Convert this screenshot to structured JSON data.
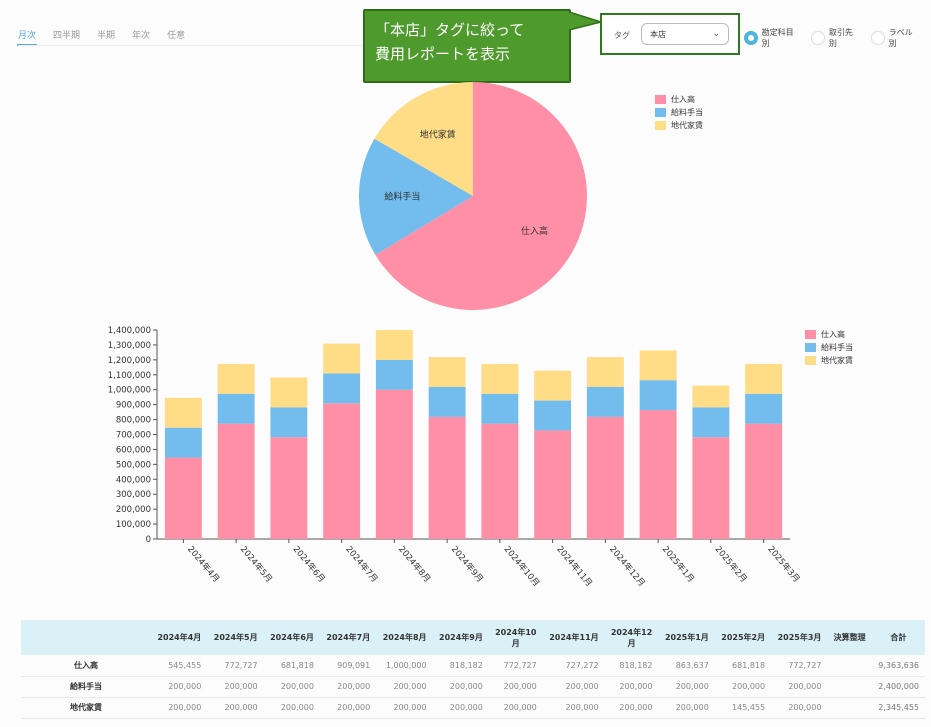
{
  "tabs": [
    {
      "label": "月次",
      "active": true
    },
    {
      "label": "四半期",
      "active": false
    },
    {
      "label": "半期",
      "active": false
    },
    {
      "label": "年次",
      "active": false
    },
    {
      "label": "任意",
      "active": false
    }
  ],
  "callout": {
    "line1": "「本店」タグに絞って",
    "line2": "費用レポートを表示"
  },
  "tag_filter": {
    "label": "タグ",
    "value": "本店"
  },
  "group_by": [
    {
      "label": "勘定科目別",
      "selected": true
    },
    {
      "label": "取引先別",
      "selected": false
    },
    {
      "label": "ラベル別",
      "selected": false
    }
  ],
  "colors": {
    "purchase": "#ff8fa6",
    "salary": "#72bcee",
    "rent": "#ffdc86"
  },
  "legend": [
    "仕入高",
    "給料手当",
    "地代家賃"
  ],
  "chart_data": [
    {
      "type": "pie",
      "labels": [
        "仕入高",
        "給料手当",
        "地代家賃"
      ],
      "values": [
        9363636,
        2400000,
        2345455
      ]
    },
    {
      "type": "bar",
      "stacked": true,
      "categories": [
        "2024年4月",
        "2024年5月",
        "2024年6月",
        "2024年7月",
        "2024年8月",
        "2024年9月",
        "2024年10月",
        "2024年11月",
        "2024年12月",
        "2025年1月",
        "2025年2月",
        "2025年3月"
      ],
      "series": [
        {
          "name": "仕入高",
          "values": [
            545455,
            772727,
            681818,
            909091,
            1000000,
            818182,
            772727,
            727272,
            818182,
            863637,
            681818,
            772727
          ]
        },
        {
          "name": "給料手当",
          "values": [
            200000,
            200000,
            200000,
            200000,
            200000,
            200000,
            200000,
            200000,
            200000,
            200000,
            200000,
            200000
          ]
        },
        {
          "name": "地代家賃",
          "values": [
            200000,
            200000,
            200000,
            200000,
            200000,
            200000,
            200000,
            200000,
            200000,
            200000,
            145455,
            200000
          ]
        }
      ],
      "ylim": [
        0,
        1400000
      ],
      "yticks": [
        "0",
        "100,000",
        "200,000",
        "300,000",
        "400,000",
        "500,000",
        "600,000",
        "700,000",
        "800,000",
        "900,000",
        "1,000,000",
        "1,100,000",
        "1,200,000",
        "1,300,000",
        "1,400,000"
      ]
    }
  ],
  "table": {
    "headers": [
      "",
      "2024年4月",
      "2024年5月",
      "2024年6月",
      "2024年7月",
      "2024年8月",
      "2024年9月",
      "2024年10\n月",
      "2024年11月",
      "2024年12\n月",
      "2025年1月",
      "2025年2月",
      "2025年3月",
      "決算整理",
      "合計"
    ],
    "rows": [
      [
        "仕入高",
        "545,455",
        "772,727",
        "681,818",
        "909,091",
        "1,000,000",
        "818,182",
        "772,727",
        "727,272",
        "818,182",
        "863,637",
        "681,818",
        "772,727",
        "",
        "9,363,636"
      ],
      [
        "給料手当",
        "200,000",
        "200,000",
        "200,000",
        "200,000",
        "200,000",
        "200,000",
        "200,000",
        "200,000",
        "200,000",
        "200,000",
        "200,000",
        "200,000",
        "",
        "2,400,000"
      ],
      [
        "地代家賃",
        "200,000",
        "200,000",
        "200,000",
        "200,000",
        "200,000",
        "200,000",
        "200,000",
        "200,000",
        "200,000",
        "200,000",
        "145,455",
        "200,000",
        "",
        "2,345,455"
      ]
    ]
  }
}
